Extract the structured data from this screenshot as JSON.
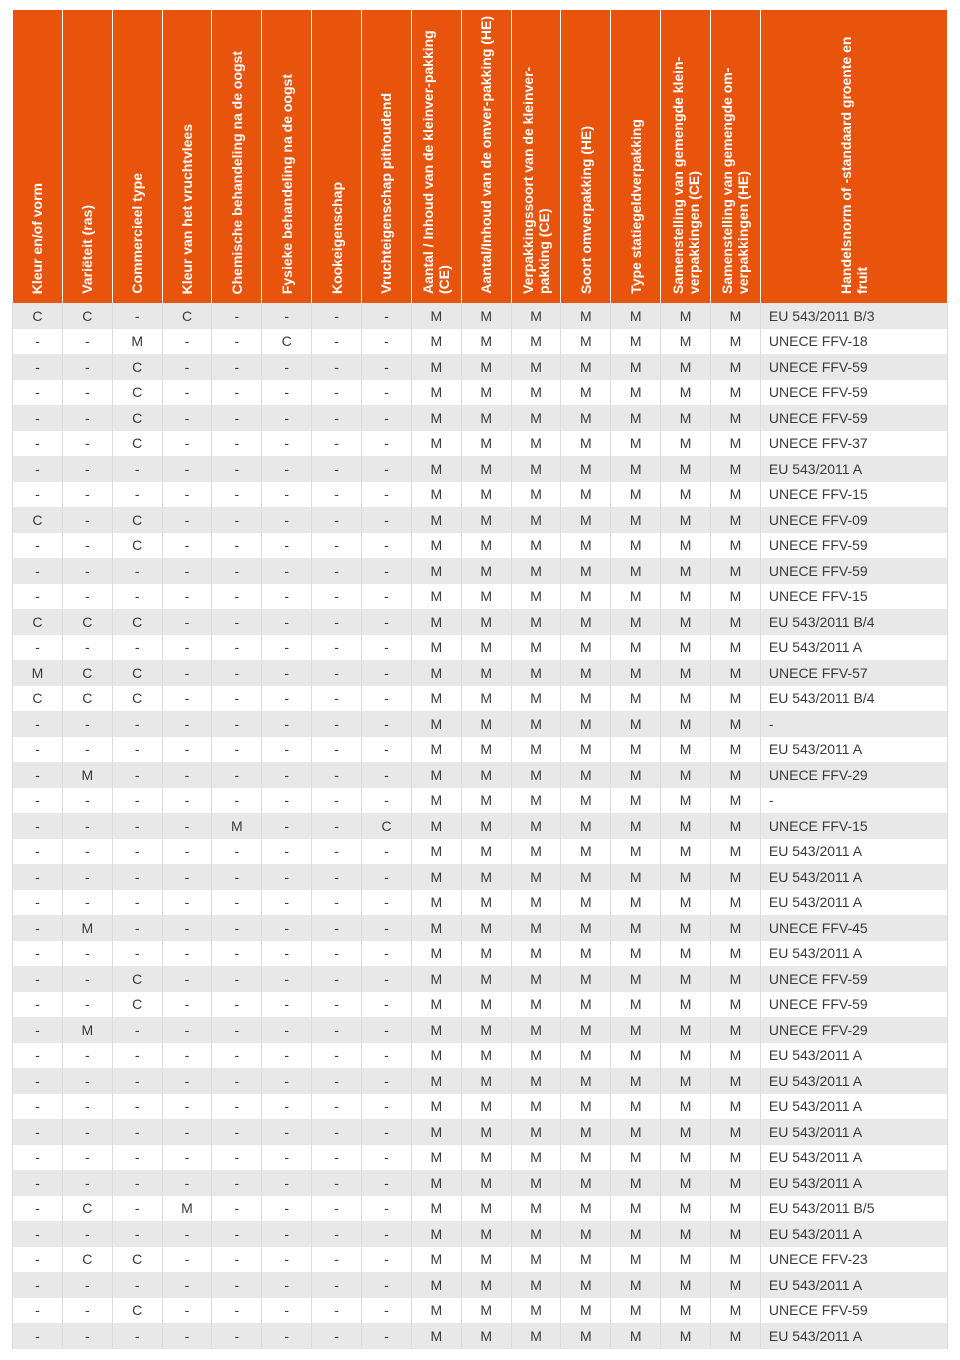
{
  "table": {
    "header_bg": "#e8540c",
    "header_fg": "#ffffff",
    "row_alt_bg": "#e8e8e8",
    "row_bg": "#ffffff",
    "cell_border": "#dcdcdc",
    "font_size_header": 14,
    "font_size_cell": 14,
    "columns": [
      "Kleur en/of vorm",
      "Variëteit (ras)",
      "Commercieel type",
      "Kleur van het vruchtvlees",
      "Chemische behandeling na de oogst",
      "Fysieke behandeling na de oogst",
      "Kookeigenschap",
      "Vruchteigenschap pithoudend",
      "Aantal / Inhoud van de kleinver-pakking (CE)",
      "Aantal/Inhoud van de omver-pakking (HE)",
      "Verpakkingssoort van de kleinver-pakking (CE)",
      "Soort omverpakking (HE)",
      "Type statiegeldverpakking",
      "Samenstelling van gemengde klein-verpakkingen (CE)",
      "Samenstelling van gemengde om-verpakkingen (HE)",
      "Handelsnorm of -standaard groente en fruit"
    ],
    "rows": [
      [
        "C",
        "C",
        "-",
        "C",
        "-",
        "-",
        "-",
        "-",
        "M",
        "M",
        "M",
        "M",
        "M",
        "M",
        "M",
        "EU 543/2011 B/3"
      ],
      [
        "-",
        "-",
        "M",
        "-",
        "-",
        "C",
        "-",
        "-",
        "M",
        "M",
        "M",
        "M",
        "M",
        "M",
        "M",
        "UNECE FFV-18"
      ],
      [
        "-",
        "-",
        "C",
        "-",
        "-",
        "-",
        "-",
        "-",
        "M",
        "M",
        "M",
        "M",
        "M",
        "M",
        "M",
        "UNECE FFV-59"
      ],
      [
        "-",
        "-",
        "C",
        "-",
        "-",
        "-",
        "-",
        "-",
        "M",
        "M",
        "M",
        "M",
        "M",
        "M",
        "M",
        "UNECE FFV-59"
      ],
      [
        "-",
        "-",
        "C",
        "-",
        "-",
        "-",
        "-",
        "-",
        "M",
        "M",
        "M",
        "M",
        "M",
        "M",
        "M",
        "UNECE FFV-59"
      ],
      [
        "-",
        "-",
        "C",
        "-",
        "-",
        "-",
        "-",
        "-",
        "M",
        "M",
        "M",
        "M",
        "M",
        "M",
        "M",
        "UNECE FFV-37"
      ],
      [
        "-",
        "-",
        "-",
        "-",
        "-",
        "-",
        "-",
        "-",
        "M",
        "M",
        "M",
        "M",
        "M",
        "M",
        "M",
        "EU 543/2011 A"
      ],
      [
        "-",
        "-",
        "-",
        "-",
        "-",
        "-",
        "-",
        "-",
        "M",
        "M",
        "M",
        "M",
        "M",
        "M",
        "M",
        "UNECE FFV-15"
      ],
      [
        "C",
        "-",
        "C",
        "-",
        "-",
        "-",
        "-",
        "-",
        "M",
        "M",
        "M",
        "M",
        "M",
        "M",
        "M",
        "UNECE FFV-09"
      ],
      [
        "-",
        "-",
        "C",
        "-",
        "-",
        "-",
        "-",
        "-",
        "M",
        "M",
        "M",
        "M",
        "M",
        "M",
        "M",
        "UNECE FFV-59"
      ],
      [
        "-",
        "-",
        "-",
        "-",
        "-",
        "-",
        "-",
        "-",
        "M",
        "M",
        "M",
        "M",
        "M",
        "M",
        "M",
        "UNECE FFV-59"
      ],
      [
        "-",
        "-",
        "-",
        "-",
        "-",
        "-",
        "-",
        "-",
        "M",
        "M",
        "M",
        "M",
        "M",
        "M",
        "M",
        "UNECE FFV-15"
      ],
      [
        "C",
        "C",
        "C",
        "-",
        "-",
        "-",
        "-",
        "-",
        "M",
        "M",
        "M",
        "M",
        "M",
        "M",
        "M",
        "EU 543/2011 B/4"
      ],
      [
        "-",
        "-",
        "-",
        "-",
        "-",
        "-",
        "-",
        "-",
        "M",
        "M",
        "M",
        "M",
        "M",
        "M",
        "M",
        "EU 543/2011 A"
      ],
      [
        "M",
        "C",
        "C",
        "-",
        "-",
        "-",
        "-",
        "-",
        "M",
        "M",
        "M",
        "M",
        "M",
        "M",
        "M",
        "UNECE FFV-57"
      ],
      [
        "C",
        "C",
        "C",
        "-",
        "-",
        "-",
        "-",
        "-",
        "M",
        "M",
        "M",
        "M",
        "M",
        "M",
        "M",
        "EU 543/2011 B/4"
      ],
      [
        "-",
        "-",
        "-",
        "-",
        "-",
        "-",
        "-",
        "-",
        "M",
        "M",
        "M",
        "M",
        "M",
        "M",
        "M",
        "-"
      ],
      [
        "-",
        "-",
        "-",
        "-",
        "-",
        "-",
        "-",
        "-",
        "M",
        "M",
        "M",
        "M",
        "M",
        "M",
        "M",
        "EU 543/2011 A"
      ],
      [
        "-",
        "M",
        "-",
        "-",
        "-",
        "-",
        "-",
        "-",
        "M",
        "M",
        "M",
        "M",
        "M",
        "M",
        "M",
        "UNECE FFV-29"
      ],
      [
        "-",
        "-",
        "-",
        "-",
        "-",
        "-",
        "-",
        "-",
        "M",
        "M",
        "M",
        "M",
        "M",
        "M",
        "M",
        "-"
      ],
      [
        "-",
        "-",
        "-",
        "-",
        "M",
        "-",
        "-",
        "C",
        "M",
        "M",
        "M",
        "M",
        "M",
        "M",
        "M",
        "UNECE FFV-15"
      ],
      [
        "-",
        "-",
        "-",
        "-",
        "-",
        "-",
        "-",
        "-",
        "M",
        "M",
        "M",
        "M",
        "M",
        "M",
        "M",
        "EU 543/2011 A"
      ],
      [
        "-",
        "-",
        "-",
        "-",
        "-",
        "-",
        "-",
        "-",
        "M",
        "M",
        "M",
        "M",
        "M",
        "M",
        "M",
        "EU 543/2011 A"
      ],
      [
        "-",
        "-",
        "-",
        "-",
        "-",
        "-",
        "-",
        "-",
        "M",
        "M",
        "M",
        "M",
        "M",
        "M",
        "M",
        "EU 543/2011 A"
      ],
      [
        "-",
        "M",
        "-",
        "-",
        "-",
        "-",
        "-",
        "-",
        "M",
        "M",
        "M",
        "M",
        "M",
        "M",
        "M",
        "UNECE FFV-45"
      ],
      [
        "-",
        "-",
        "-",
        "-",
        "-",
        "-",
        "-",
        "-",
        "M",
        "M",
        "M",
        "M",
        "M",
        "M",
        "M",
        "EU 543/2011 A"
      ],
      [
        "-",
        "-",
        "C",
        "-",
        "-",
        "-",
        "-",
        "-",
        "M",
        "M",
        "M",
        "M",
        "M",
        "M",
        "M",
        "UNECE FFV-59"
      ],
      [
        "-",
        "-",
        "C",
        "-",
        "-",
        "-",
        "-",
        "-",
        "M",
        "M",
        "M",
        "M",
        "M",
        "M",
        "M",
        "UNECE FFV-59"
      ],
      [
        "-",
        "M",
        "-",
        "-",
        "-",
        "-",
        "-",
        "-",
        "M",
        "M",
        "M",
        "M",
        "M",
        "M",
        "M",
        "UNECE FFV-29"
      ],
      [
        "-",
        "-",
        "-",
        "-",
        "-",
        "-",
        "-",
        "-",
        "M",
        "M",
        "M",
        "M",
        "M",
        "M",
        "M",
        "EU 543/2011 A"
      ],
      [
        "-",
        "-",
        "-",
        "-",
        "-",
        "-",
        "-",
        "-",
        "M",
        "M",
        "M",
        "M",
        "M",
        "M",
        "M",
        "EU 543/2011 A"
      ],
      [
        "-",
        "-",
        "-",
        "-",
        "-",
        "-",
        "-",
        "-",
        "M",
        "M",
        "M",
        "M",
        "M",
        "M",
        "M",
        "EU 543/2011 A"
      ],
      [
        "-",
        "-",
        "-",
        "-",
        "-",
        "-",
        "-",
        "-",
        "M",
        "M",
        "M",
        "M",
        "M",
        "M",
        "M",
        "EU 543/2011 A"
      ],
      [
        "-",
        "-",
        "-",
        "-",
        "-",
        "-",
        "-",
        "-",
        "M",
        "M",
        "M",
        "M",
        "M",
        "M",
        "M",
        "EU 543/2011 A"
      ],
      [
        "-",
        "-",
        "-",
        "-",
        "-",
        "-",
        "-",
        "-",
        "M",
        "M",
        "M",
        "M",
        "M",
        "M",
        "M",
        "EU 543/2011 A"
      ],
      [
        "-",
        "C",
        "-",
        "M",
        "-",
        "-",
        "-",
        "-",
        "M",
        "M",
        "M",
        "M",
        "M",
        "M",
        "M",
        "EU 543/2011 B/5"
      ],
      [
        "-",
        "-",
        "-",
        "-",
        "-",
        "-",
        "-",
        "-",
        "M",
        "M",
        "M",
        "M",
        "M",
        "M",
        "M",
        "EU 543/2011 A"
      ],
      [
        "-",
        "C",
        "C",
        "-",
        "-",
        "-",
        "-",
        "-",
        "M",
        "M",
        "M",
        "M",
        "M",
        "M",
        "M",
        "UNECE FFV-23"
      ],
      [
        "-",
        "-",
        "-",
        "-",
        "-",
        "-",
        "-",
        "-",
        "M",
        "M",
        "M",
        "M",
        "M",
        "M",
        "M",
        "EU 543/2011 A"
      ],
      [
        "-",
        "-",
        "C",
        "-",
        "-",
        "-",
        "-",
        "-",
        "M",
        "M",
        "M",
        "M",
        "M",
        "M",
        "M",
        "UNECE FFV-59"
      ],
      [
        "-",
        "-",
        "-",
        "-",
        "-",
        "-",
        "-",
        "-",
        "M",
        "M",
        "M",
        "M",
        "M",
        "M",
        "M",
        "EU 543/2011 A"
      ]
    ]
  }
}
